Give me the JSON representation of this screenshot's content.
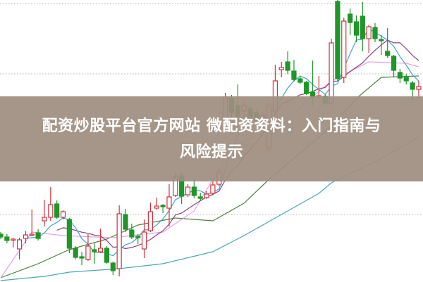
{
  "banner": {
    "line1": "配资炒股平台官方网站 微配资资料：入门指南与",
    "line2": "风险提示"
  },
  "chart_data": {
    "type": "candlestick",
    "candle_format": [
      "open",
      "close",
      "high",
      "low"
    ],
    "grid": "horizontal-dotted",
    "grid_levels": [
      95,
      195,
      295,
      395
    ],
    "ylim": [
      0,
      400
    ],
    "colors": {
      "up": "#d2323c",
      "down": "#1e9628",
      "ma5": "#3aa6c8",
      "ma10": "#8c3f78",
      "ma20": "#eaa0e6",
      "ma30": "#4f7f3c",
      "ma60": "#4aa7b2",
      "banner": "#9e8e80"
    },
    "candles": [
      [
        67,
        63,
        70,
        60
      ],
      [
        63,
        58,
        67,
        54
      ],
      [
        59,
        60,
        62,
        48
      ],
      [
        46,
        59,
        62,
        31
      ],
      [
        61,
        66,
        72,
        54
      ],
      [
        66,
        67,
        102,
        64
      ],
      [
        69,
        61,
        74,
        58
      ],
      [
        86,
        91,
        116,
        78
      ],
      [
        91,
        109,
        134,
        86
      ],
      [
        110,
        91,
        115,
        89
      ],
      [
        91,
        99,
        101,
        88
      ],
      [
        88,
        47,
        90,
        40
      ],
      [
        47,
        34,
        50,
        31
      ],
      [
        35,
        33,
        42,
        23
      ],
      [
        31,
        50,
        67,
        29
      ],
      [
        45,
        42,
        54,
        25
      ],
      [
        42,
        47,
        75,
        40
      ],
      [
        47,
        27,
        50,
        25
      ],
      [
        26,
        15,
        28,
        9
      ],
      [
        18,
        96,
        108,
        7
      ],
      [
        95,
        74,
        103,
        70
      ],
      [
        73,
        63,
        82,
        60
      ],
      [
        64,
        62,
        67,
        53
      ],
      [
        46,
        70,
        88,
        33
      ],
      [
        72,
        99,
        112,
        70
      ],
      [
        104,
        107,
        119,
        102
      ],
      [
        108,
        106,
        110,
        97
      ],
      [
        104,
        120,
        138,
        78
      ],
      [
        122,
        148,
        155,
        120
      ],
      [
        150,
        121,
        155,
        110
      ],
      [
        123,
        134,
        138,
        120
      ],
      [
        134,
        122,
        145,
        118
      ],
      [
        120,
        118,
        126,
        114
      ],
      [
        119,
        124,
        128,
        117
      ],
      [
        125,
        137,
        142,
        122
      ],
      [
        138,
        155,
        160,
        135
      ],
      [
        225,
        262,
        268,
        220
      ],
      [
        260,
        240,
        265,
        230
      ],
      [
        250,
        235,
        280,
        232
      ],
      [
        242,
        250,
        255,
        230
      ],
      [
        245,
        230,
        250,
        225
      ],
      [
        240,
        228,
        244,
        224
      ],
      [
        225,
        235,
        240,
        220
      ],
      [
        190,
        250,
        255,
        185
      ],
      [
        242,
        285,
        308,
        238
      ],
      [
        301,
        304,
        312,
        290
      ],
      [
        312,
        300,
        327,
        295
      ],
      [
        299,
        287,
        315,
        284
      ],
      [
        288,
        283,
        292,
        281
      ],
      [
        283,
        267,
        285,
        265
      ],
      [
        269,
        262,
        314,
        250
      ],
      [
        262,
        264,
        292,
        260
      ],
      [
        263,
        253,
        267,
        250
      ],
      [
        253,
        339,
        345,
        250
      ],
      [
        398,
        288,
        400,
        285
      ],
      [
        290,
        370,
        375,
        282
      ],
      [
        380,
        368,
        388,
        350
      ],
      [
        369,
        350,
        378,
        340
      ],
      [
        377,
        345,
        397,
        327
      ],
      [
        345,
        362,
        365,
        325
      ],
      [
        361,
        345,
        367,
        340
      ],
      [
        344,
        342,
        350,
        322
      ],
      [
        327,
        321,
        360,
        318
      ],
      [
        320,
        300,
        322,
        290
      ],
      [
        297,
        289,
        302,
        282
      ],
      [
        290,
        285,
        295,
        280
      ],
      [
        282,
        273,
        285,
        257
      ],
      [
        273,
        277,
        285,
        260
      ]
    ],
    "moving_averages": {
      "ma20": [
        [
          0,
          5
        ],
        [
          5,
          70
        ],
        [
          10,
          65
        ],
        [
          18,
          62
        ],
        [
          26,
          70
        ],
        [
          31,
          100
        ],
        [
          34,
          145
        ],
        [
          38,
          195
        ],
        [
          43,
          215
        ],
        [
          47,
          240
        ],
        [
          53,
          285
        ],
        [
          59,
          312
        ],
        [
          62,
          311
        ],
        [
          65,
          310
        ],
        [
          67,
          305
        ]
      ],
      "ma30": [
        [
          0,
          5
        ],
        [
          6,
          25
        ],
        [
          11,
          45
        ],
        [
          17,
          60
        ],
        [
          22,
          80
        ],
        [
          28,
          90
        ],
        [
          34,
          86
        ],
        [
          39,
          111
        ],
        [
          43,
          145
        ],
        [
          53,
          220
        ],
        [
          57,
          260
        ],
        [
          61,
          290
        ],
        [
          67,
          292
        ]
      ],
      "ma60": [
        [
          0,
          1
        ],
        [
          7,
          7
        ],
        [
          11,
          13
        ],
        [
          19,
          18
        ],
        [
          26,
          25
        ],
        [
          34,
          42
        ],
        [
          39,
          65
        ],
        [
          45,
          95
        ],
        [
          51,
          125
        ],
        [
          53,
          140
        ],
        [
          60,
          170
        ],
        [
          67,
          205
        ]
      ]
    }
  }
}
